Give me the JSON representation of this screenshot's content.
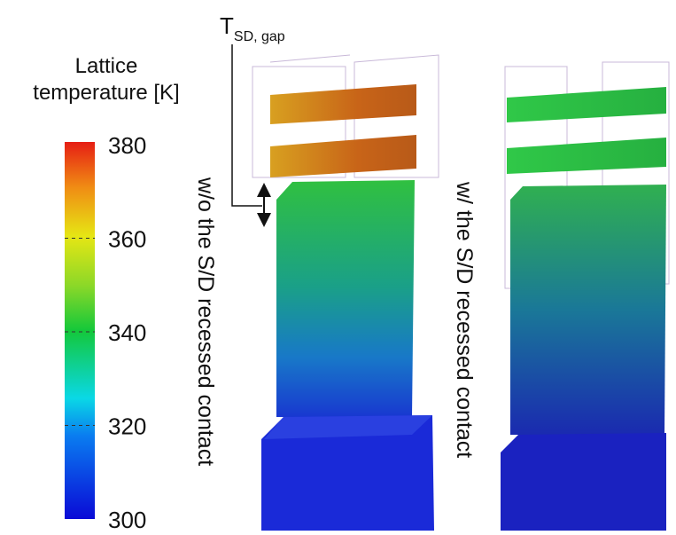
{
  "colorbar": {
    "title": [
      "Lattice",
      "temperature [K]"
    ],
    "range": [
      300,
      380
    ],
    "ticks": [
      300,
      320,
      340,
      360,
      380
    ]
  },
  "gap_label": {
    "symbol": "T",
    "subscript": "SD, gap"
  },
  "panels": [
    {
      "label": "w/o the S/D recessed contact"
    },
    {
      "label": "w/ the S/D recessed contact"
    }
  ]
}
